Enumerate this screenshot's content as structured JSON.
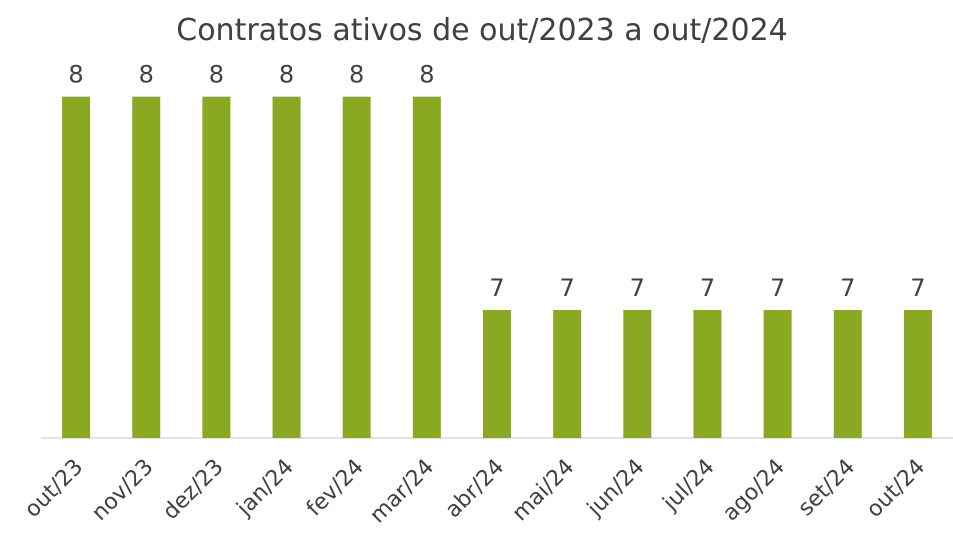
{
  "chart_data": {
    "type": "bar",
    "title": "Contratos ativos de out/2023 a out/2024",
    "categories": [
      "out/23",
      "nov/23",
      "dez/23",
      "jan/24",
      "fev/24",
      "mar/24",
      "abr/24",
      "mai/24",
      "jun/24",
      "jul/24",
      "ago/24",
      "set/24",
      "out/24"
    ],
    "values": [
      8,
      8,
      8,
      8,
      8,
      8,
      7,
      7,
      7,
      7,
      7,
      7,
      7
    ],
    "color": "#8ba823",
    "ylim": [
      6.4,
      8.2
    ]
  }
}
